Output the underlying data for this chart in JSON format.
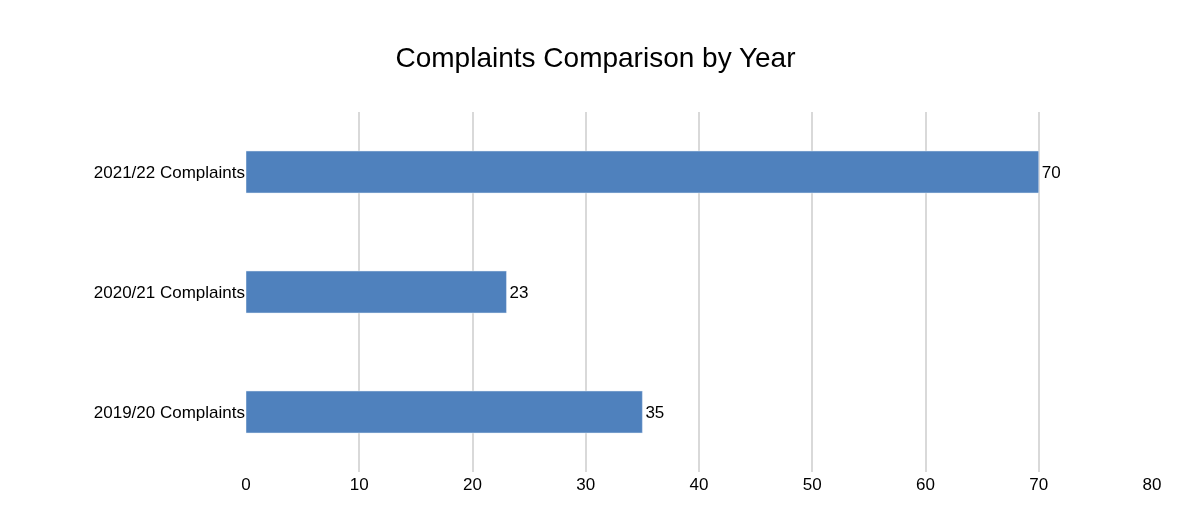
{
  "chart_data": {
    "type": "bar",
    "orientation": "horizontal",
    "title": "Complaints Comparison by Year",
    "categories": [
      "2021/22 Complaints",
      "2020/21 Complaints",
      "2019/20 Complaints"
    ],
    "values": [
      70,
      23,
      35
    ],
    "color": "#4f81bd",
    "xlim": [
      0,
      80
    ],
    "xticks": [
      0,
      10,
      20,
      30,
      40,
      50,
      60,
      70,
      80
    ],
    "grid": "x",
    "data_labels": true,
    "legend": false
  }
}
